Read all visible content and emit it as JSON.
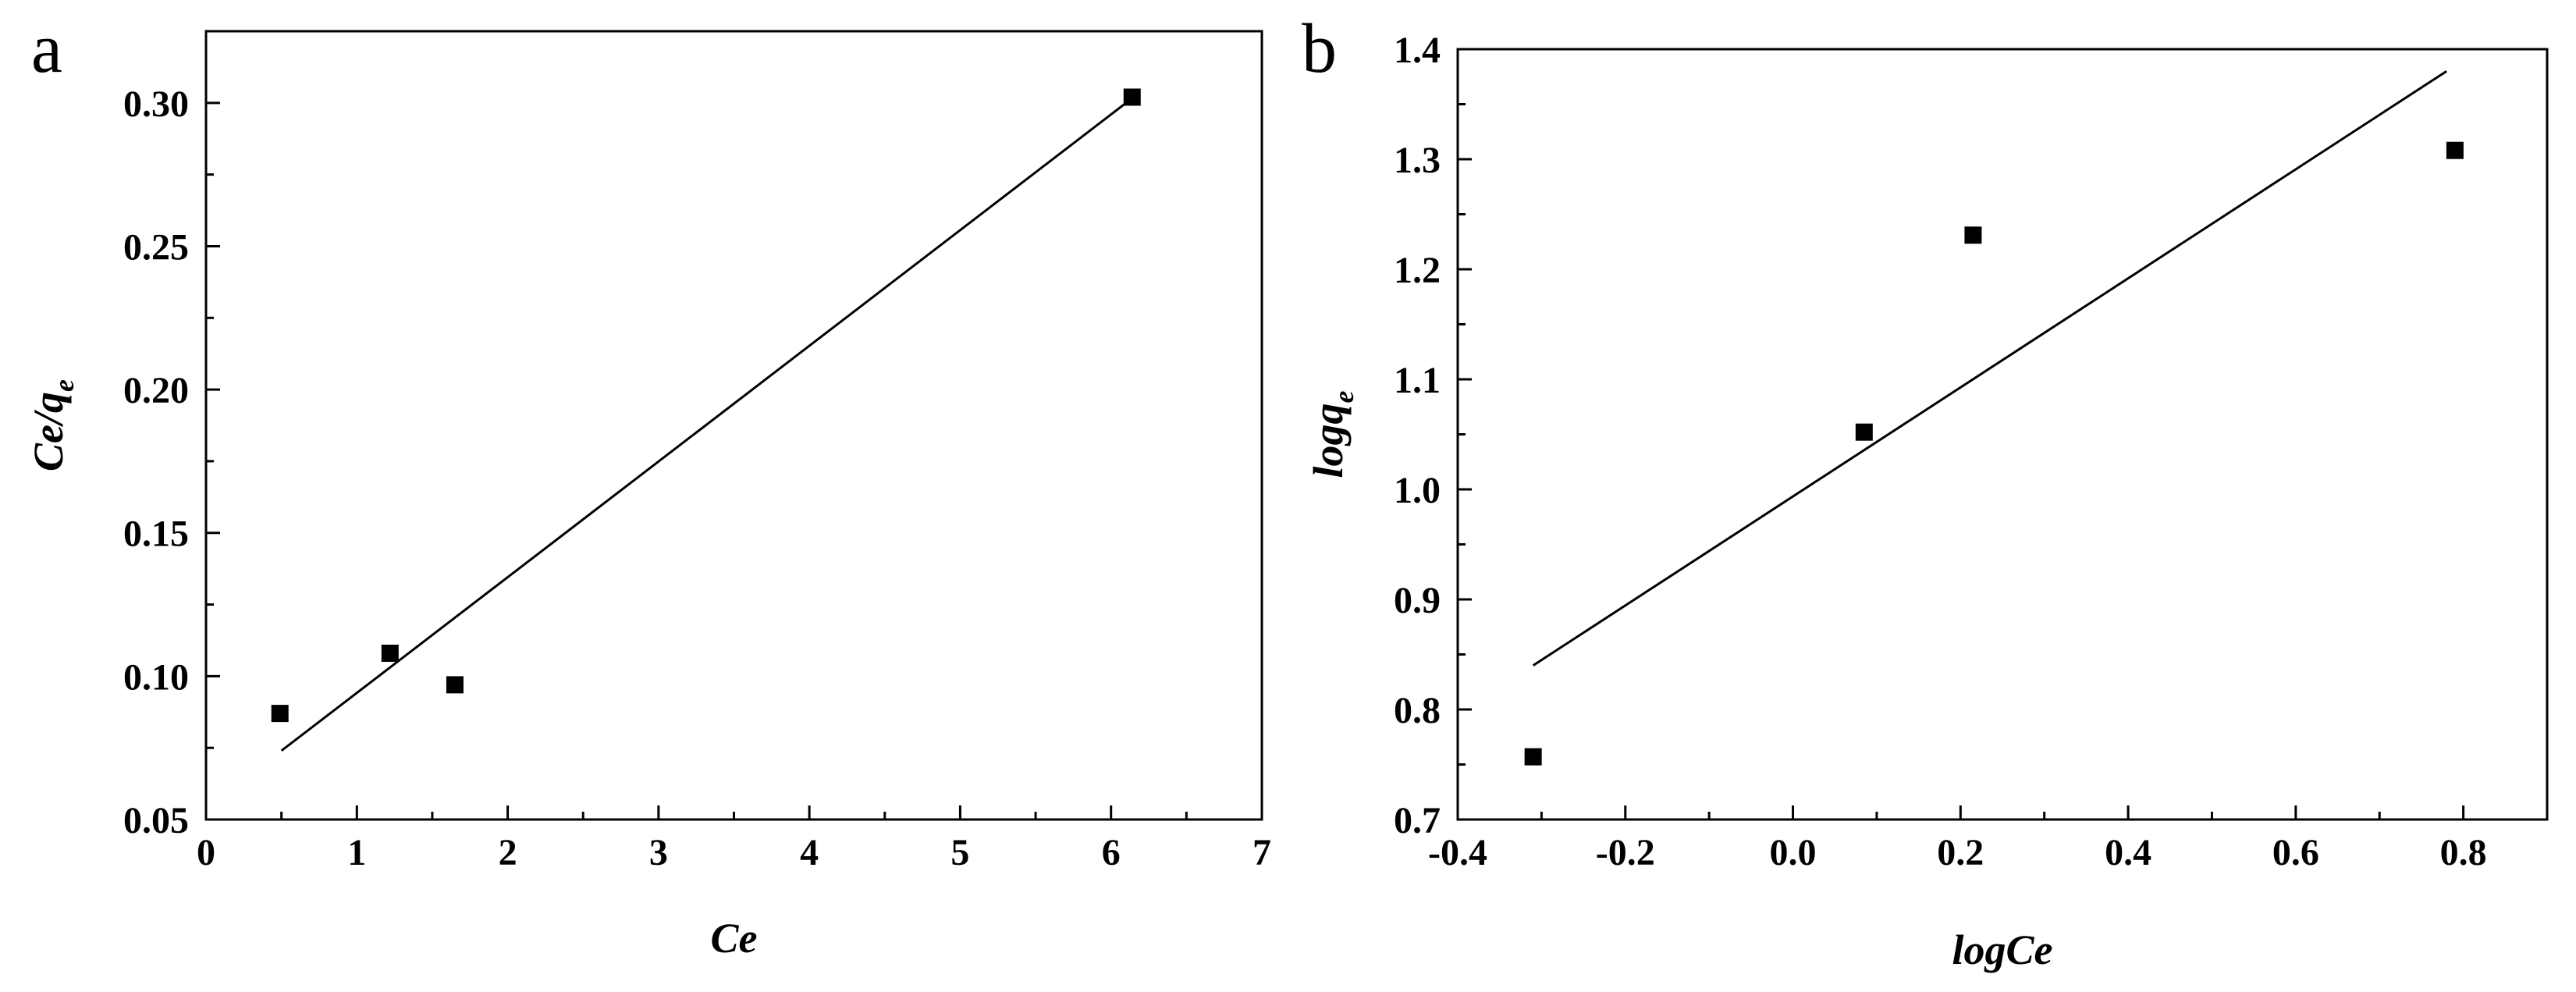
{
  "figure": {
    "panels": [
      {
        "label": "a"
      },
      {
        "label": "b"
      }
    ]
  },
  "chart_data": [
    {
      "type": "scatter",
      "panel": "a",
      "title": "",
      "xlabel": "Ce",
      "ylabel_main": "Ce/q",
      "ylabel_sub": "e",
      "xlim": [
        0,
        7
      ],
      "ylim": [
        0.05,
        0.325
      ],
      "xticks": [
        0,
        1,
        2,
        3,
        4,
        5,
        6,
        7
      ],
      "xtick_labels": [
        "0",
        "1",
        "2",
        "3",
        "4",
        "5",
        "6",
        "7"
      ],
      "yticks": [
        0.05,
        0.1,
        0.15,
        0.2,
        0.25,
        0.3
      ],
      "ytick_labels": [
        "0.05",
        "0.10",
        "0.15",
        "0.20",
        "0.25",
        "0.30"
      ],
      "grid": false,
      "series": [
        {
          "kind": "points",
          "marker": "square",
          "color": "#000000",
          "x": [
            0.49,
            1.22,
            1.65,
            6.14
          ],
          "y": [
            0.087,
            0.108,
            0.097,
            0.302
          ]
        },
        {
          "kind": "fit-line",
          "color": "#000000",
          "x": [
            0.5,
            6.1
          ],
          "y": [
            0.074,
            0.3
          ]
        }
      ]
    },
    {
      "type": "scatter",
      "panel": "b",
      "title": "",
      "xlabel": "logCe",
      "ylabel_main": "logq",
      "ylabel_sub": "e",
      "xlim": [
        -0.4,
        0.9
      ],
      "ylim": [
        0.7,
        1.4
      ],
      "xticks": [
        -0.4,
        -0.2,
        0.0,
        0.2,
        0.4,
        0.6,
        0.8
      ],
      "xtick_labels": [
        "-0.4",
        "-0.2",
        "0.0",
        "0.2",
        "0.4",
        "0.6",
        "0.8"
      ],
      "yticks": [
        0.7,
        0.8,
        0.9,
        1.0,
        1.1,
        1.2,
        1.3,
        1.4
      ],
      "ytick_labels": [
        "0.7",
        "0.8",
        "0.9",
        "1.0",
        "1.1",
        "1.2",
        "1.3",
        "1.4"
      ],
      "grid": false,
      "series": [
        {
          "kind": "points",
          "marker": "square",
          "color": "#000000",
          "x": [
            -0.31,
            0.085,
            0.215,
            0.79
          ],
          "y": [
            0.757,
            1.052,
            1.231,
            1.308
          ]
        },
        {
          "kind": "fit-line",
          "color": "#000000",
          "x": [
            -0.31,
            0.78
          ],
          "y": [
            0.84,
            1.38
          ]
        }
      ]
    }
  ]
}
